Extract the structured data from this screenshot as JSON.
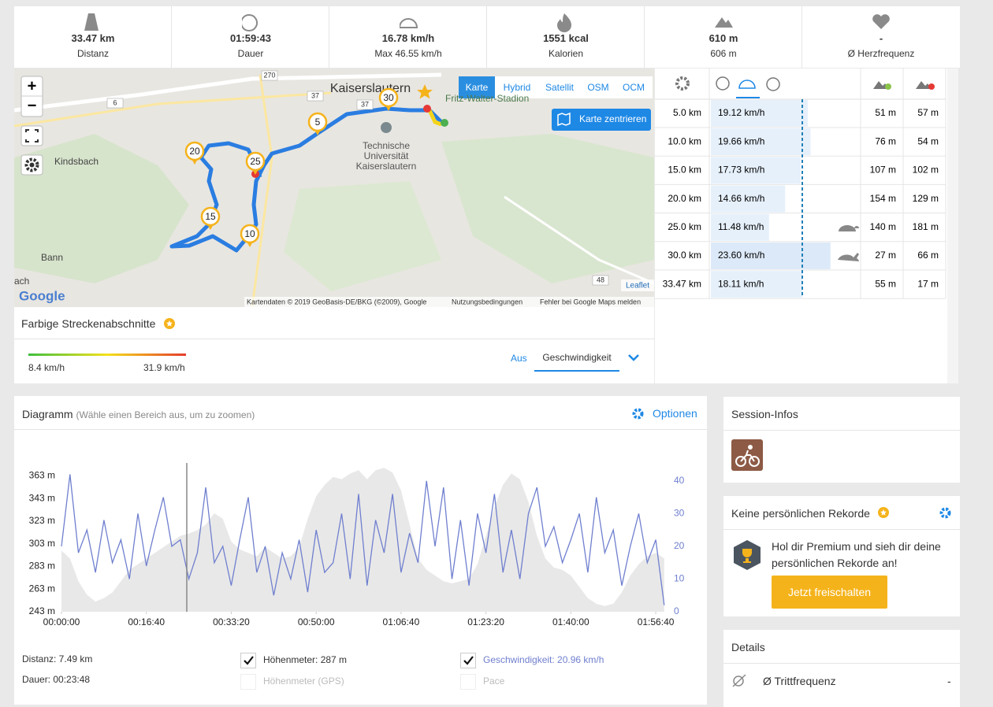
{
  "stats": [
    {
      "value": "33.47 km",
      "label": "Distanz"
    },
    {
      "value": "01:59:43",
      "label": "Dauer"
    },
    {
      "value": "16.78 km/h",
      "label": "Max 46.55 km/h"
    },
    {
      "value": "1551 kcal",
      "label": "Kalorien"
    },
    {
      "value": "610 m",
      "label": "606 m"
    },
    {
      "value": "-",
      "label": "Ø Herzfrequenz"
    }
  ],
  "map": {
    "zoom_in": "+",
    "zoom_out": "−",
    "layers": [
      "Karte",
      "Hybrid",
      "Satellit",
      "OSM",
      "OCM"
    ],
    "center_button": "Karte zentrieren",
    "city": "Kaiserslautern",
    "university": [
      "Technische",
      "Universität",
      "Kaiserslautern"
    ],
    "places": [
      "Kindsbach",
      "Bann",
      "ach"
    ],
    "stadium": "Fritz-Walter-Stadion",
    "roads": [
      "270",
      "37",
      "37",
      "6",
      "48"
    ],
    "markers": [
      "5",
      "10",
      "15",
      "20",
      "25",
      "30"
    ],
    "attribution": "Leaflet",
    "copyright": "Kartendaten © 2019 GeoBasis-DE/BKG (©2009), Google",
    "terms": "Nutzungsbedingungen",
    "report": "Fehler bei Google Maps melden",
    "logo": "Google"
  },
  "segments": {
    "title": "Farbige Streckenabschnitte",
    "min": "8.4 km/h",
    "max": "31.9 km/h",
    "off": "Aus",
    "mode": "Geschwindigkeit"
  },
  "splits": {
    "distance": [
      "5.0 km",
      "10.0 km",
      "15.0 km",
      "20.0 km",
      "25.0 km",
      "30.0 km",
      "33.47 km"
    ],
    "speed": [
      19.12,
      19.66,
      17.73,
      14.66,
      11.48,
      23.6,
      18.11
    ],
    "speed_labels": [
      "19.12 km/h",
      "19.66 km/h",
      "17.73 km/h",
      "14.66 km/h",
      "11.48 km/h",
      "23.60 km/h",
      "18.11 km/h"
    ],
    "up": [
      "51 m",
      "76 m",
      "107 m",
      "154 m",
      "140 m",
      "27 m",
      "55 m"
    ],
    "down": [
      "57 m",
      "54 m",
      "102 m",
      "129 m",
      "181 m",
      "66 m",
      "17 m"
    ]
  },
  "diagram": {
    "title": "Diagramm",
    "hint": "(Wähle einen Bereich aus, um zu zoomen)",
    "options": "Optionen",
    "chart_data": {
      "type": "line",
      "x": [
        0,
        100,
        200,
        300,
        400,
        500,
        600,
        700,
        800,
        900,
        1000,
        1100,
        1200,
        1300,
        1400,
        1500,
        1600,
        1700,
        1800,
        1900,
        2000,
        2100,
        2200,
        2300,
        2400,
        2500,
        2600,
        2700,
        2800,
        2900,
        3000,
        3100,
        3200,
        3300,
        3400,
        3500,
        3600,
        3700,
        3800,
        3900,
        4000,
        4100,
        4200,
        4300,
        4400,
        4500,
        4600,
        4700,
        4800,
        4900,
        5000,
        5100,
        5200,
        5300,
        5400,
        5500,
        5600,
        5700,
        5800,
        5900,
        6000,
        6100,
        6200,
        6300,
        6400,
        6500,
        6600,
        6700,
        6800,
        6900,
        7000,
        7100
      ],
      "series": [
        {
          "style": "area",
          "color": "#e8e8e8",
          "values": [
            297,
            290,
            270,
            258,
            252,
            255,
            260,
            270,
            280,
            285,
            290,
            295,
            300,
            305,
            310,
            312,
            315,
            320,
            330,
            325,
            305,
            298,
            295,
            292,
            300,
            295,
            290,
            292,
            300,
            325,
            345,
            355,
            362,
            360,
            365,
            368,
            360,
            368,
            370,
            366,
            350,
            320,
            290,
            280,
            275,
            270,
            268,
            270,
            272,
            285,
            310,
            335,
            355,
            365,
            360,
            340,
            310,
            290,
            282,
            280,
            275,
            265,
            255,
            250,
            248,
            250,
            260,
            275,
            285,
            292,
            295,
            290
          ]
        },
        {
          "style": "line",
          "axis": "y2",
          "color": "#6f7fcf",
          "values": [
            20,
            42,
            18,
            25,
            12,
            28,
            15,
            22,
            10,
            30,
            14,
            25,
            35,
            20,
            22,
            10,
            18,
            38,
            15,
            20,
            8,
            22,
            35,
            12,
            20,
            5,
            18,
            10,
            22,
            6,
            25,
            12,
            15,
            30,
            10,
            36,
            8,
            28,
            18,
            36,
            12,
            24,
            15,
            40,
            20,
            38,
            10,
            28,
            8,
            30,
            18,
            36,
            12,
            25,
            10,
            30,
            38,
            20,
            26,
            15,
            22,
            30,
            12,
            35,
            18,
            25,
            8,
            20,
            30,
            15,
            22,
            2
          ]
        }
      ],
      "xlim": [
        0,
        7120
      ],
      "xticks": [
        {
          "value": 0,
          "label": "00:00:00"
        },
        {
          "value": 1000,
          "label": "00:16:40"
        },
        {
          "value": 2000,
          "label": "00:33:20"
        },
        {
          "value": 3000,
          "label": "00:50:00"
        },
        {
          "value": 4000,
          "label": "01:06:40"
        },
        {
          "value": 5000,
          "label": "01:23:20"
        },
        {
          "value": 6000,
          "label": "01:40:00"
        },
        {
          "value": 7000,
          "label": "01:56:40"
        }
      ],
      "ylim": [
        243,
        373
      ],
      "yticks": [
        {
          "value": 243,
          "label": "243 m"
        },
        {
          "value": 263,
          "label": "263 m"
        },
        {
          "value": 283,
          "label": "283 m"
        },
        {
          "value": 303,
          "label": "303 m"
        },
        {
          "value": 323,
          "label": "323 m"
        },
        {
          "value": 343,
          "label": "343 m"
        },
        {
          "value": 363,
          "label": "363 m"
        }
      ],
      "y2lim": [
        0,
        45
      ],
      "y2ticks": [
        0,
        10,
        20,
        30,
        40
      ]
    },
    "summary": {
      "distance": "Distanz: 7.49 km",
      "duration": "Dauer: 00:23:48",
      "elevation": "Höhenmeter: 287 m",
      "elevation_gps": "Höhenmeter (GPS)",
      "speed": "Geschwindigkeit: 20.96 km/h",
      "pace": "Pace"
    }
  },
  "session": {
    "title": "Session-Infos"
  },
  "records": {
    "title": "Keine persönlichen Rekorde",
    "text": [
      "Hol dir Premium und sieh dir deine",
      "persönlichen Rekorde an!"
    ],
    "button": "Jetzt freischalten"
  },
  "details": {
    "title": "Details",
    "rows": [
      {
        "label": "Ø Trittfrequenz",
        "value": "-"
      }
    ]
  }
}
